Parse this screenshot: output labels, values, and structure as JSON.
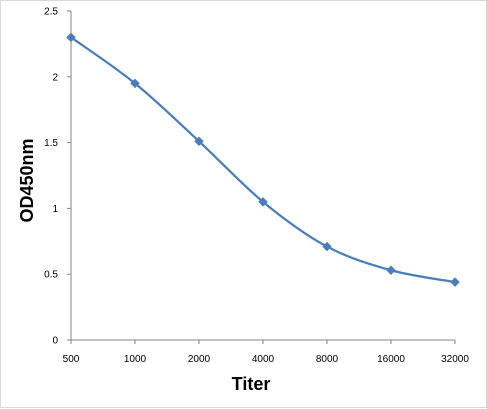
{
  "chart_data": {
    "type": "line",
    "title": "",
    "xlabel": "Titer",
    "ylabel": "OD450nm",
    "categories": [
      "500",
      "1000",
      "2000",
      "4000",
      "8000",
      "16000",
      "32000"
    ],
    "x": [
      500,
      1000,
      2000,
      4000,
      8000,
      16000,
      32000
    ],
    "series": [
      {
        "values": [
          2.3,
          1.95,
          1.51,
          1.05,
          0.71,
          0.53,
          0.44
        ],
        "color": "#4a7ebb",
        "marker": "diamond",
        "smooth": true
      }
    ],
    "ylim": [
      0,
      2.5
    ],
    "yticks": [
      "0",
      "0.5",
      "1",
      "1.5",
      "2",
      "2.5"
    ],
    "x_scale": "log2 (evenly spaced categories)",
    "grid": false,
    "legend": "none"
  }
}
